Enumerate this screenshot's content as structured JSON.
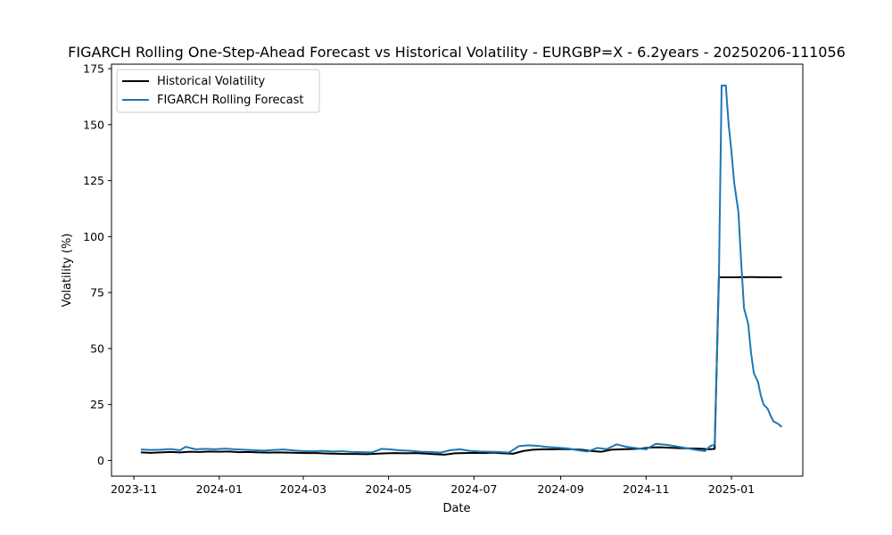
{
  "chart_data": {
    "type": "line",
    "title": "FIGARCH Rolling One-Step-Ahead Forecast vs Historical Volatility - EURGBP=X - 6.2years - 20250206-111056",
    "xlabel": "Date",
    "ylabel": "Volatility (%)",
    "x_axis": {
      "type": "date",
      "range": [
        "2023-10-16",
        "2025-02-21"
      ],
      "ticks": [
        "2023-11-01",
        "2024-01-01",
        "2024-03-01",
        "2024-05-01",
        "2024-07-01",
        "2024-09-01",
        "2024-11-01",
        "2025-01-01"
      ],
      "tick_labels": [
        "2023-11",
        "2024-01",
        "2024-03",
        "2024-05",
        "2024-07",
        "2024-09",
        "2024-11",
        "2025-01"
      ]
    },
    "y_axis": {
      "range": [
        -7,
        177
      ],
      "ticks": [
        0,
        25,
        50,
        75,
        100,
        125,
        150,
        175
      ],
      "tick_labels": [
        "0",
        "25",
        "50",
        "75",
        "100",
        "125",
        "150",
        "175"
      ]
    },
    "grid": false,
    "legend": {
      "position": "upper-left"
    },
    "series": [
      {
        "name": "Historical Volatility",
        "color": "#000000",
        "points": [
          [
            "2023-11-06",
            3.6
          ],
          [
            "2023-11-13",
            3.4
          ],
          [
            "2023-11-20",
            3.6
          ],
          [
            "2023-11-27",
            3.8
          ],
          [
            "2023-12-04",
            3.6
          ],
          [
            "2023-12-11",
            3.9
          ],
          [
            "2023-12-18",
            3.8
          ],
          [
            "2023-12-25",
            4.0
          ],
          [
            "2024-01-01",
            3.9
          ],
          [
            "2024-01-08",
            4.0
          ],
          [
            "2024-01-15",
            3.7
          ],
          [
            "2024-01-22",
            3.8
          ],
          [
            "2024-01-29",
            3.6
          ],
          [
            "2024-02-05",
            3.5
          ],
          [
            "2024-02-12",
            3.6
          ],
          [
            "2024-02-19",
            3.5
          ],
          [
            "2024-02-26",
            3.4
          ],
          [
            "2024-03-04",
            3.3
          ],
          [
            "2024-03-11",
            3.3
          ],
          [
            "2024-03-18",
            3.1
          ],
          [
            "2024-03-25",
            3.0
          ],
          [
            "2024-04-01",
            2.9
          ],
          [
            "2024-04-08",
            2.9
          ],
          [
            "2024-04-15",
            2.8
          ],
          [
            "2024-04-22",
            3.0
          ],
          [
            "2024-04-29",
            3.2
          ],
          [
            "2024-05-06",
            3.3
          ],
          [
            "2024-05-13",
            3.2
          ],
          [
            "2024-05-20",
            3.3
          ],
          [
            "2024-05-27",
            3.1
          ],
          [
            "2024-06-03",
            2.8
          ],
          [
            "2024-06-10",
            2.6
          ],
          [
            "2024-06-17",
            3.2
          ],
          [
            "2024-06-24",
            3.3
          ],
          [
            "2024-07-01",
            3.4
          ],
          [
            "2024-07-08",
            3.3
          ],
          [
            "2024-07-15",
            3.5
          ],
          [
            "2024-07-22",
            3.2
          ],
          [
            "2024-07-29",
            3.0
          ],
          [
            "2024-08-05",
            4.2
          ],
          [
            "2024-08-12",
            4.8
          ],
          [
            "2024-08-19",
            5.0
          ],
          [
            "2024-08-26",
            5.0
          ],
          [
            "2024-09-02",
            5.1
          ],
          [
            "2024-09-09",
            5.0
          ],
          [
            "2024-09-16",
            4.8
          ],
          [
            "2024-09-23",
            4.2
          ],
          [
            "2024-09-30",
            3.9
          ],
          [
            "2024-10-07",
            4.8
          ],
          [
            "2024-10-14",
            5.0
          ],
          [
            "2024-10-21",
            5.1
          ],
          [
            "2024-10-28",
            5.3
          ],
          [
            "2024-11-04",
            5.8
          ],
          [
            "2024-11-11",
            5.9
          ],
          [
            "2024-11-18",
            5.7
          ],
          [
            "2024-11-25",
            5.5
          ],
          [
            "2024-12-02",
            5.4
          ],
          [
            "2024-12-09",
            5.3
          ],
          [
            "2024-12-16",
            5.0
          ],
          [
            "2024-12-20",
            5.2
          ],
          [
            "2024-12-23",
            81.8
          ],
          [
            "2025-01-01",
            81.8
          ],
          [
            "2025-01-15",
            81.9
          ],
          [
            "2025-01-29",
            81.8
          ],
          [
            "2025-02-06",
            81.8
          ]
        ]
      },
      {
        "name": "FIGARCH Rolling Forecast",
        "color": "#1f77b4",
        "points": [
          [
            "2023-11-06",
            4.9
          ],
          [
            "2023-11-13",
            4.7
          ],
          [
            "2023-11-20",
            4.8
          ],
          [
            "2023-11-27",
            5.1
          ],
          [
            "2023-12-04",
            4.6
          ],
          [
            "2023-12-08",
            6.1
          ],
          [
            "2023-12-15",
            5.0
          ],
          [
            "2023-12-22",
            5.2
          ],
          [
            "2023-12-29",
            5.0
          ],
          [
            "2024-01-05",
            5.3
          ],
          [
            "2024-01-12",
            5.0
          ],
          [
            "2024-01-19",
            4.8
          ],
          [
            "2024-01-26",
            4.6
          ],
          [
            "2024-02-02",
            4.4
          ],
          [
            "2024-02-09",
            4.7
          ],
          [
            "2024-02-16",
            4.9
          ],
          [
            "2024-02-23",
            4.5
          ],
          [
            "2024-03-01",
            4.2
          ],
          [
            "2024-03-08",
            4.1
          ],
          [
            "2024-03-15",
            4.3
          ],
          [
            "2024-03-22",
            4.0
          ],
          [
            "2024-03-29",
            4.1
          ],
          [
            "2024-04-05",
            3.8
          ],
          [
            "2024-04-12",
            3.7
          ],
          [
            "2024-04-19",
            3.6
          ],
          [
            "2024-04-26",
            5.2
          ],
          [
            "2024-05-03",
            4.9
          ],
          [
            "2024-05-10",
            4.5
          ],
          [
            "2024-05-17",
            4.3
          ],
          [
            "2024-05-24",
            3.9
          ],
          [
            "2024-05-31",
            3.8
          ],
          [
            "2024-06-07",
            3.5
          ],
          [
            "2024-06-14",
            4.6
          ],
          [
            "2024-06-21",
            5.0
          ],
          [
            "2024-06-28",
            4.3
          ],
          [
            "2024-07-05",
            4.0
          ],
          [
            "2024-07-12",
            3.9
          ],
          [
            "2024-07-19",
            3.8
          ],
          [
            "2024-07-26",
            3.5
          ],
          [
            "2024-08-02",
            6.4
          ],
          [
            "2024-08-09",
            6.8
          ],
          [
            "2024-08-16",
            6.5
          ],
          [
            "2024-08-23",
            6.0
          ],
          [
            "2024-08-30",
            5.7
          ],
          [
            "2024-09-06",
            5.4
          ],
          [
            "2024-09-13",
            4.6
          ],
          [
            "2024-09-20",
            4.0
          ],
          [
            "2024-09-27",
            5.6
          ],
          [
            "2024-10-04",
            5.1
          ],
          [
            "2024-10-11",
            7.2
          ],
          [
            "2024-10-18",
            6.1
          ],
          [
            "2024-10-25",
            5.5
          ],
          [
            "2024-11-01",
            5.0
          ],
          [
            "2024-11-08",
            7.4
          ],
          [
            "2024-11-15",
            7.0
          ],
          [
            "2024-11-22",
            6.4
          ],
          [
            "2024-11-29",
            5.6
          ],
          [
            "2024-12-06",
            4.8
          ],
          [
            "2024-12-13",
            4.2
          ],
          [
            "2024-12-17",
            6.5
          ],
          [
            "2024-12-20",
            7.0
          ],
          [
            "2024-12-23",
            80.0
          ],
          [
            "2024-12-25",
            167.5
          ],
          [
            "2024-12-28",
            167.5
          ],
          [
            "2024-12-30",
            150.0
          ],
          [
            "2025-01-01",
            138.0
          ],
          [
            "2025-01-03",
            124.0
          ],
          [
            "2025-01-06",
            111.0
          ],
          [
            "2025-01-08",
            88.0
          ],
          [
            "2025-01-10",
            68.0
          ],
          [
            "2025-01-13",
            61.0
          ],
          [
            "2025-01-15",
            48.0
          ],
          [
            "2025-01-17",
            39.0
          ],
          [
            "2025-01-20",
            35.0
          ],
          [
            "2025-01-22",
            29.0
          ],
          [
            "2025-01-24",
            25.0
          ],
          [
            "2025-01-27",
            23.0
          ],
          [
            "2025-01-29",
            20.0
          ],
          [
            "2025-01-31",
            17.5
          ],
          [
            "2025-02-03",
            16.5
          ],
          [
            "2025-02-06",
            15.0
          ]
        ]
      }
    ]
  }
}
